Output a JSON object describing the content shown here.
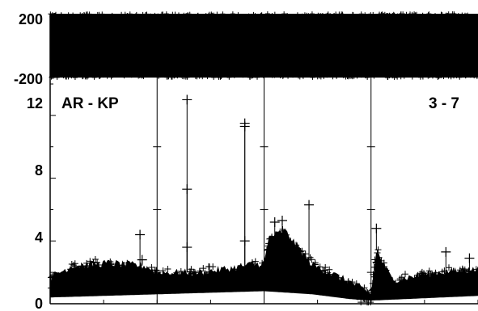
{
  "chart_data": [
    {
      "type": "scatter",
      "panel": "upper",
      "marker": "+",
      "ylim": [
        -200,
        200
      ],
      "y_ticks": [
        -200,
        200
      ],
      "y_tick_labels": [
        "-200",
        "200"
      ],
      "band": {
        "y_min": -200,
        "y_max": 200,
        "coverage": "dense-full"
      },
      "color": "#000000"
    },
    {
      "type": "scatter",
      "panel": "lower",
      "marker": "+",
      "title_left": "AR - KP",
      "title_right": "3 - 7",
      "ylim": [
        0,
        14
      ],
      "y_ticks": [
        0,
        4,
        8,
        12
      ],
      "y_tick_labels": [
        "0",
        "4",
        "8",
        "12"
      ],
      "x_count": 8,
      "segment_breaks": [
        1,
        2,
        3,
        4
      ],
      "baseline_envelope": [
        {
          "x": 0.0,
          "y": 1.7
        },
        {
          "x": 0.2,
          "y": 2.4
        },
        {
          "x": 0.55,
          "y": 2.6
        },
        {
          "x": 0.9,
          "y": 2.4
        },
        {
          "x": 1.0,
          "y": 2.0
        },
        {
          "x": 1.4,
          "y": 2.0
        },
        {
          "x": 1.8,
          "y": 2.4
        },
        {
          "x": 2.0,
          "y": 2.6
        },
        {
          "x": 2.05,
          "y": 4.3
        },
        {
          "x": 2.2,
          "y": 4.6
        },
        {
          "x": 2.45,
          "y": 2.5
        },
        {
          "x": 2.8,
          "y": 1.4
        },
        {
          "x": 3.0,
          "y": 0.6
        },
        {
          "x": 3.05,
          "y": 3.4
        },
        {
          "x": 3.2,
          "y": 1.5
        },
        {
          "x": 3.6,
          "y": 2.0
        },
        {
          "x": 4.0,
          "y": 2.2
        }
      ],
      "baseline_floor": [
        {
          "x": 0.0,
          "y": 0.4
        },
        {
          "x": 2.0,
          "y": 0.8
        },
        {
          "x": 2.45,
          "y": 0.6
        },
        {
          "x": 2.8,
          "y": 0.3
        },
        {
          "x": 3.0,
          "y": 0.2
        },
        {
          "x": 4.0,
          "y": 0.5
        }
      ],
      "outliers": [
        {
          "x": 0.84,
          "y": 4.4
        },
        {
          "x": 0.86,
          "y": 2.8
        },
        {
          "x": 1.28,
          "y": 13.0
        },
        {
          "x": 1.28,
          "y": 7.3
        },
        {
          "x": 1.28,
          "y": 3.6
        },
        {
          "x": 1.82,
          "y": 11.5
        },
        {
          "x": 1.82,
          "y": 11.3
        },
        {
          "x": 1.82,
          "y": 4.0
        },
        {
          "x": 2.42,
          "y": 6.3
        },
        {
          "x": 2.1,
          "y": 5.2
        },
        {
          "x": 2.17,
          "y": 5.3
        },
        {
          "x": 3.05,
          "y": 4.8
        },
        {
          "x": 3.7,
          "y": 3.3
        },
        {
          "x": 3.92,
          "y": 2.9
        }
      ],
      "color": "#000000"
    }
  ]
}
